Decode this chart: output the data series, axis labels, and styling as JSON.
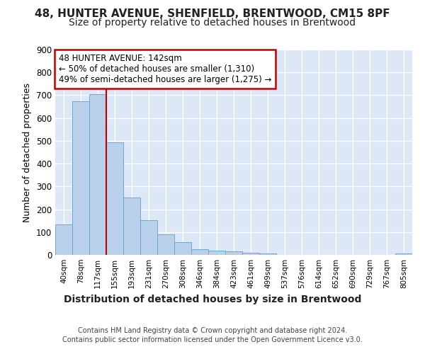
{
  "title1": "48, HUNTER AVENUE, SHENFIELD, BRENTWOOD, CM15 8PF",
  "title2": "Size of property relative to detached houses in Brentwood",
  "xlabel": "Distribution of detached houses by size in Brentwood",
  "ylabel": "Number of detached properties",
  "footer1": "Contains HM Land Registry data © Crown copyright and database right 2024.",
  "footer2": "Contains public sector information licensed under the Open Government Licence v3.0.",
  "bar_labels": [
    "40sqm",
    "78sqm",
    "117sqm",
    "155sqm",
    "193sqm",
    "231sqm",
    "270sqm",
    "308sqm",
    "346sqm",
    "384sqm",
    "423sqm",
    "461sqm",
    "499sqm",
    "537sqm",
    "576sqm",
    "614sqm",
    "652sqm",
    "690sqm",
    "729sqm",
    "767sqm",
    "805sqm"
  ],
  "bar_values": [
    133,
    675,
    706,
    493,
    252,
    152,
    90,
    55,
    26,
    18,
    15,
    9,
    6,
    0,
    0,
    0,
    0,
    0,
    0,
    0,
    5
  ],
  "bar_color": "#b8d0ea",
  "bar_edge_color": "#6aaad4",
  "bg_color": "#dce8f8",
  "vline_x": 2.5,
  "vline_color": "#c00000",
  "annotation_title": "48 HUNTER AVENUE: 142sqm",
  "annotation_line1": "← 50% of detached houses are smaller (1,310)",
  "annotation_line2": "49% of semi-detached houses are larger (1,275) →",
  "annotation_box_facecolor": "#ffffff",
  "annotation_box_edgecolor": "#c00000",
  "ylim": [
    0,
    900
  ],
  "yticks": [
    0,
    100,
    200,
    300,
    400,
    500,
    600,
    700,
    800,
    900
  ],
  "grid_color": "#ffffff",
  "title1_fontsize": 11,
  "title2_fontsize": 10,
  "xlabel_fontsize": 10,
  "ylabel_fontsize": 9,
  "tick_fontsize": 9,
  "footer_fontsize": 7
}
